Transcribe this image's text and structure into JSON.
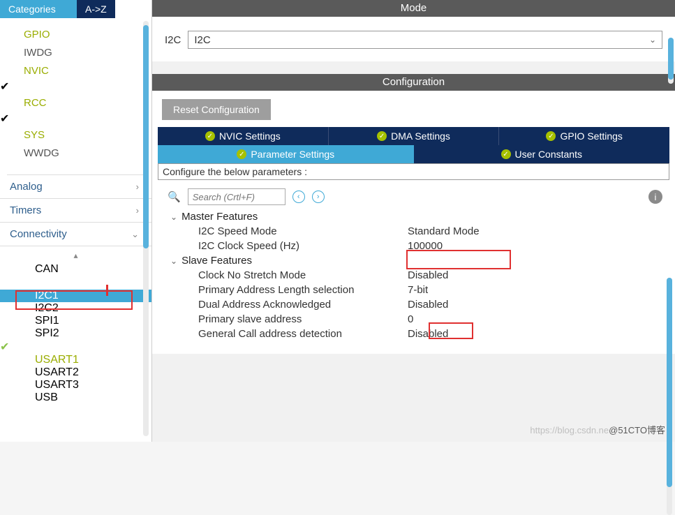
{
  "sidebar": {
    "tab_categories": "Categories",
    "tab_az": "A->Z",
    "core_items": [
      {
        "label": "GPIO",
        "checked": false,
        "accent": true
      },
      {
        "label": "IWDG",
        "checked": false,
        "accent": false
      },
      {
        "label": "NVIC",
        "checked": false,
        "accent": true
      },
      {
        "label": "RCC",
        "checked": true,
        "accent": true
      },
      {
        "label": "SYS",
        "checked": true,
        "accent": true
      },
      {
        "label": "WWDG",
        "checked": false,
        "accent": false
      }
    ],
    "groups": [
      {
        "label": "Analog",
        "expanded": false
      },
      {
        "label": "Timers",
        "expanded": false
      },
      {
        "label": "Connectivity",
        "expanded": true
      }
    ],
    "connectivity_items": [
      {
        "label": "CAN",
        "checked": false,
        "accent": false,
        "highlight": false
      },
      {
        "label": "I2C1",
        "checked": true,
        "accent": false,
        "highlight": true
      },
      {
        "label": "I2C2",
        "checked": false,
        "accent": false,
        "highlight": false
      },
      {
        "label": "SPI1",
        "checked": false,
        "accent": false,
        "highlight": false
      },
      {
        "label": "SPI2",
        "checked": false,
        "accent": false,
        "highlight": false
      },
      {
        "label": "USART1",
        "checked": true,
        "accent": true,
        "highlight": false
      },
      {
        "label": "USART2",
        "checked": false,
        "accent": false,
        "highlight": false
      },
      {
        "label": "USART3",
        "checked": false,
        "accent": false,
        "highlight": false
      },
      {
        "label": "USB",
        "checked": false,
        "accent": false,
        "highlight": false
      }
    ]
  },
  "mode": {
    "header": "Mode",
    "label": "I2C",
    "value": "I2C"
  },
  "config": {
    "header": "Configuration",
    "reset_label": "Reset Configuration",
    "tabs_row1": [
      "NVIC Settings",
      "DMA Settings",
      "GPIO Settings"
    ],
    "tabs_row2": [
      {
        "label": "Parameter Settings",
        "active": true
      },
      {
        "label": "User Constants",
        "active": false
      }
    ],
    "note": "Configure the below parameters :",
    "search_placeholder": "Search (Crtl+F)",
    "groups": [
      {
        "title": "Master Features",
        "rows": [
          {
            "k": "I2C Speed Mode",
            "v": "Standard Mode"
          },
          {
            "k": "I2C Clock Speed (Hz)",
            "v": "100000"
          }
        ]
      },
      {
        "title": "Slave Features",
        "rows": [
          {
            "k": "Clock No Stretch Mode",
            "v": "Disabled"
          },
          {
            "k": "Primary Address Length selection",
            "v": "7-bit"
          },
          {
            "k": "Dual Address Acknowledged",
            "v": "Disabled"
          },
          {
            "k": "Primary slave address",
            "v": "0"
          },
          {
            "k": "General Call address detection",
            "v": "Disabled"
          }
        ]
      }
    ]
  },
  "colors": {
    "accent_blue": "#3fa9d6",
    "dark_navy": "#0f2b5b",
    "gray_bar": "#5a5a5a",
    "accent_green_text": "#9aad00",
    "check_green": "#8bc34a",
    "red_highlight": "#e03030"
  },
  "watermark": {
    "light": "https://blog.csdn.ne",
    "dark": "@51CTO博客"
  }
}
